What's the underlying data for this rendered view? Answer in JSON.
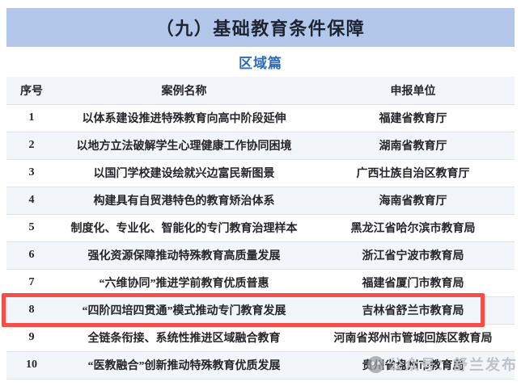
{
  "header": {
    "title": "（九）基础教育条件保障",
    "band_color": "#b2c7e9",
    "title_color": "#1d2534"
  },
  "subtitle": {
    "label": "区域篇",
    "color": "#2e6cb7"
  },
  "table": {
    "columns": [
      "序号",
      "案例名称",
      "申报单位"
    ],
    "rows": [
      {
        "no": "1",
        "case": "以体系建设推进特殊教育向高中阶段延伸",
        "unit": "福建省教育厅",
        "highlighted": false
      },
      {
        "no": "2",
        "case": "以地方立法破解学生心理健康工作协同困境",
        "unit": "湖南省教育厅",
        "highlighted": false
      },
      {
        "no": "3",
        "case": "以国门学校建设绘就兴边富民新图景",
        "unit": "广西壮族自治区教育厅",
        "highlighted": false
      },
      {
        "no": "4",
        "case": "构建具有自贸港特色的教育矫治体系",
        "unit": "海南省教育厅",
        "highlighted": false
      },
      {
        "no": "5",
        "case": "制度化、专业化、智能化的专门教育治理样本",
        "unit": "黑龙江省哈尔滨市教育局",
        "highlighted": false
      },
      {
        "no": "6",
        "case": "强化资源保障推动特殊教育高质量发展",
        "unit": "浙江省宁波市教育局",
        "highlighted": false
      },
      {
        "no": "7",
        "case": "“六维协同”推进学前教育优质普惠",
        "unit": "福建省厦门市教育局",
        "highlighted": false
      },
      {
        "no": "8",
        "case": "“四阶四培四贯通”模式推动专门教育发展",
        "unit": "吉林省舒兰市教育局",
        "highlighted": true
      },
      {
        "no": "9",
        "case": "全链条衔接、系统性推进区域融合教育",
        "unit": "河南省郑州市管城回族区教育局",
        "highlighted": false
      },
      {
        "no": "10",
        "case": "“医教融合”创新推动特殊教育优质发展",
        "unit": "贵州省盘州市教育局",
        "highlighted": false
      }
    ],
    "stripe_color": "#f2f5f9",
    "highlight_border_color": "#f24f4a"
  },
  "watermark": {
    "icon": "wechat-icon",
    "text": "公众号：舒兰发布",
    "color": "#bfc3c9"
  }
}
